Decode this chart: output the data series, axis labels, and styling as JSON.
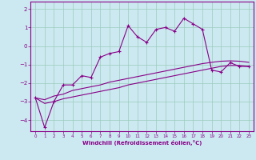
{
  "xlabel": "Windchill (Refroidissement éolien,°C)",
  "ylabel": "",
  "bg_color": "#cce8f0",
  "line_color": "#880088",
  "grid_color": "#99ccbb",
  "xlim": [
    -0.5,
    23.5
  ],
  "ylim": [
    -4.6,
    2.4
  ],
  "xticks": [
    0,
    1,
    2,
    3,
    4,
    5,
    6,
    7,
    8,
    9,
    10,
    11,
    12,
    13,
    14,
    15,
    16,
    17,
    18,
    19,
    20,
    21,
    22,
    23
  ],
  "yticks": [
    -4,
    -3,
    -2,
    -1,
    0,
    1,
    2
  ],
  "main_x": [
    0,
    1,
    2,
    3,
    4,
    5,
    6,
    7,
    8,
    9,
    10,
    11,
    12,
    13,
    14,
    15,
    16,
    17,
    18,
    19,
    20,
    21,
    22,
    23
  ],
  "main_y": [
    -2.8,
    -4.4,
    -3.0,
    -2.1,
    -2.1,
    -1.6,
    -1.7,
    -0.6,
    -0.4,
    -0.3,
    1.1,
    0.5,
    0.2,
    0.9,
    1.0,
    0.8,
    1.5,
    1.2,
    0.9,
    -1.3,
    -1.4,
    -0.9,
    -1.1,
    -1.1
  ],
  "ref1_x": [
    0,
    1,
    2,
    3,
    4,
    5,
    6,
    7,
    8,
    9,
    10,
    11,
    12,
    13,
    14,
    15,
    16,
    17,
    18,
    19,
    20,
    21,
    22,
    23
  ],
  "ref1_y": [
    -2.8,
    -2.9,
    -2.7,
    -2.6,
    -2.4,
    -2.3,
    -2.2,
    -2.1,
    -1.95,
    -1.85,
    -1.75,
    -1.65,
    -1.55,
    -1.45,
    -1.35,
    -1.25,
    -1.15,
    -1.05,
    -0.95,
    -0.88,
    -0.82,
    -0.8,
    -0.82,
    -0.88
  ],
  "ref2_x": [
    0,
    1,
    2,
    3,
    4,
    5,
    6,
    7,
    8,
    9,
    10,
    11,
    12,
    13,
    14,
    15,
    16,
    17,
    18,
    19,
    20,
    21,
    22,
    23
  ],
  "ref2_y": [
    -2.8,
    -3.1,
    -3.0,
    -2.85,
    -2.75,
    -2.65,
    -2.55,
    -2.45,
    -2.35,
    -2.25,
    -2.1,
    -2.0,
    -1.9,
    -1.8,
    -1.7,
    -1.6,
    -1.5,
    -1.4,
    -1.3,
    -1.2,
    -1.1,
    -1.05,
    -1.05,
    -1.1
  ]
}
